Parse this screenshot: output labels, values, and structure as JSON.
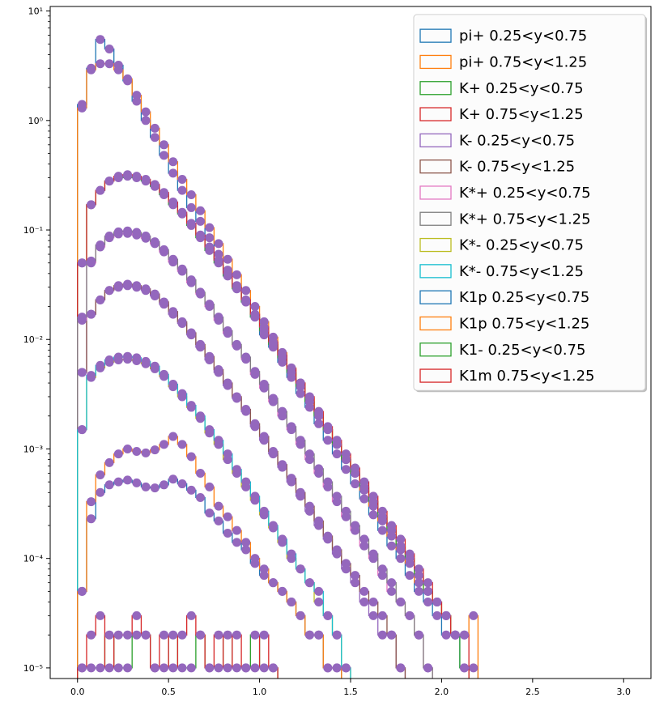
{
  "chart_data": {
    "type": "line",
    "title": "",
    "xlabel": "",
    "ylabel": "",
    "xlim": [
      -0.15,
      3.15
    ],
    "ylim": [
      8e-06,
      11
    ],
    "yscale": "log",
    "grid": false,
    "legend_position": "top-right",
    "bin_width": 0.05,
    "xticks": [
      0.0,
      0.5,
      1.0,
      1.5,
      2.0,
      2.5,
      3.0
    ],
    "xtick_labels": [
      "0.0",
      "0.5",
      "1.0",
      "1.5",
      "2.0",
      "2.5",
      "3.0"
    ],
    "yticks": [
      1e-05,
      0.0001,
      0.001,
      0.01,
      0.1,
      1,
      10
    ],
    "ytick_labels": [
      "10⁻⁵",
      "10⁻⁴",
      "10⁻³",
      "10⁻²",
      "10⁻¹",
      "10⁰",
      "10¹"
    ],
    "marker_color": "#9467bd",
    "series": [
      {
        "name": "pi+ 0.25<y<0.75",
        "color": "#1f77b4",
        "values": [
          1.4,
          3.0,
          5.5,
          4.5,
          3.2,
          2.3,
          1.5,
          1.0,
          0.7,
          0.48,
          0.33,
          0.23,
          0.16,
          0.12,
          0.085,
          0.06,
          0.043,
          0.031,
          0.022,
          0.016,
          0.011,
          0.0085,
          0.0062,
          0.0045,
          0.0032,
          0.0024,
          0.0017,
          0.0012,
          0.0009,
          0.00065,
          0.00048,
          0.00035,
          0.00025,
          0.00018,
          0.00013,
          0.0001,
          7e-05,
          5e-05,
          4e-05,
          3e-05,
          2e-05,
          2e-05,
          1e-05,
          1e-05
        ]
      },
      {
        "name": "pi+ 0.75<y<1.25",
        "color": "#ff7f0e",
        "values": [
          1.3,
          2.9,
          3.3,
          3.3,
          2.9,
          2.4,
          1.7,
          1.2,
          0.85,
          0.6,
          0.42,
          0.29,
          0.21,
          0.15,
          0.105,
          0.075,
          0.054,
          0.039,
          0.028,
          0.02,
          0.0145,
          0.0105,
          0.0076,
          0.0055,
          0.004,
          0.0029,
          0.0021,
          0.0015,
          0.0011,
          0.0008,
          0.0006,
          0.00042,
          0.0003,
          0.00022,
          0.00016,
          0.00012,
          9e-05,
          6e-05,
          5e-05,
          4e-05,
          3e-05,
          2e-05,
          2e-05,
          3e-05
        ]
      },
      {
        "name": "K+ 0.25<y<0.75",
        "color": "#2ca02c",
        "values": [
          0.05,
          0.17,
          0.23,
          0.28,
          0.3,
          0.31,
          0.3,
          0.28,
          0.25,
          0.21,
          0.17,
          0.14,
          0.11,
          0.085,
          0.065,
          0.05,
          0.038,
          0.029,
          0.022,
          0.016,
          0.012,
          0.009,
          0.0068,
          0.005,
          0.0037,
          0.0027,
          0.002,
          0.0015,
          0.0011,
          0.0008,
          0.0006,
          0.00045,
          0.00033,
          0.00024,
          0.00018,
          0.00013,
          0.0001,
          7e-05,
          5e-05,
          4e-05,
          3e-05,
          2e-05,
          1e-05
        ]
      },
      {
        "name": "K+ 0.75<y<1.25",
        "color": "#d62728",
        "values": [
          0.05,
          0.17,
          0.23,
          0.28,
          0.31,
          0.32,
          0.31,
          0.29,
          0.26,
          0.22,
          0.18,
          0.145,
          0.115,
          0.09,
          0.07,
          0.053,
          0.04,
          0.03,
          0.023,
          0.017,
          0.013,
          0.0095,
          0.0072,
          0.0054,
          0.004,
          0.003,
          0.0022,
          0.0016,
          0.0012,
          0.0009,
          0.00067,
          0.0005,
          0.00037,
          0.00027,
          0.0002,
          0.00015,
          0.00011,
          8e-05,
          6e-05,
          4e-05,
          3e-05,
          2e-05,
          2e-05
        ]
      },
      {
        "name": "K- 0.25<y<0.75",
        "color": "#9467bd",
        "values": [
          0.005,
          0.017,
          0.023,
          0.028,
          0.03,
          0.031,
          0.03,
          0.028,
          0.025,
          0.021,
          0.017,
          0.014,
          0.011,
          0.0085,
          0.0065,
          0.005,
          0.0038,
          0.0029,
          0.0022,
          0.0016,
          0.0012,
          0.0009,
          0.00068,
          0.0005,
          0.00037,
          0.00027,
          0.0002,
          0.00015,
          0.00011,
          8e-05,
          6e-05,
          4e-05,
          3e-05,
          2e-05,
          2e-05,
          1e-05
        ]
      },
      {
        "name": "K- 0.75<y<1.25",
        "color": "#8c564b",
        "values": [
          0.005,
          0.017,
          0.023,
          0.028,
          0.031,
          0.032,
          0.031,
          0.029,
          0.026,
          0.022,
          0.018,
          0.0145,
          0.0115,
          0.009,
          0.007,
          0.0053,
          0.004,
          0.003,
          0.0023,
          0.0017,
          0.0013,
          0.00095,
          0.00072,
          0.00054,
          0.0004,
          0.0003,
          0.00022,
          0.00016,
          0.00012,
          9e-05,
          7e-05,
          5e-05,
          4e-05,
          3e-05,
          2e-05,
          1e-05
        ]
      },
      {
        "name": "K*+ 0.25<y<0.75",
        "color": "#e377c2",
        "values": [
          0.015,
          0.05,
          0.07,
          0.085,
          0.092,
          0.093,
          0.09,
          0.084,
          0.075,
          0.063,
          0.051,
          0.042,
          0.033,
          0.026,
          0.02,
          0.015,
          0.0114,
          0.0087,
          0.0066,
          0.0048,
          0.0036,
          0.0027,
          0.002,
          0.0015,
          0.0011,
          0.0008,
          0.0006,
          0.00045,
          0.00033,
          0.00024,
          0.00018,
          0.00013,
          0.0001,
          7e-05,
          5e-05,
          4e-05,
          3e-05,
          2e-05,
          1e-05
        ]
      },
      {
        "name": "K*+ 0.75<y<1.25",
        "color": "#7f7f7f",
        "values": [
          0.016,
          0.052,
          0.073,
          0.088,
          0.096,
          0.098,
          0.095,
          0.088,
          0.078,
          0.066,
          0.054,
          0.044,
          0.035,
          0.027,
          0.021,
          0.016,
          0.012,
          0.009,
          0.0069,
          0.0051,
          0.0039,
          0.0029,
          0.0022,
          0.0016,
          0.0012,
          0.0009,
          0.00066,
          0.0005,
          0.00037,
          0.00027,
          0.0002,
          0.00015,
          0.00011,
          8e-05,
          6e-05,
          4e-05,
          3e-05,
          2e-05,
          1e-05
        ]
      },
      {
        "name": "K*- 0.25<y<0.75",
        "color": "#bcbd22",
        "values": [
          0.0015,
          0.0045,
          0.0055,
          0.0062,
          0.0065,
          0.0066,
          0.0064,
          0.006,
          0.0054,
          0.0046,
          0.0037,
          0.003,
          0.0024,
          0.0019,
          0.0014,
          0.0011,
          0.0008,
          0.0006,
          0.00045,
          0.00034,
          0.00025,
          0.00019,
          0.00014,
          0.0001,
          8e-05,
          6e-05,
          4e-05,
          3e-05,
          2e-05,
          1e-05
        ]
      },
      {
        "name": "K*- 0.75<y<1.25",
        "color": "#17becf",
        "values": [
          0.0015,
          0.0047,
          0.0058,
          0.0065,
          0.0069,
          0.007,
          0.0068,
          0.0063,
          0.0057,
          0.0048,
          0.0039,
          0.0032,
          0.0025,
          0.002,
          0.0015,
          0.0012,
          0.0009,
          0.00065,
          0.0005,
          0.00037,
          0.00027,
          0.0002,
          0.00015,
          0.00011,
          8e-05,
          6e-05,
          5e-05,
          3e-05,
          2e-05,
          1e-05
        ]
      },
      {
        "name": "K1p 0.25<y<0.75",
        "color": "#1f77b4",
        "values": [
          5e-05,
          0.00023,
          0.0004,
          0.00047,
          0.0005,
          0.00052,
          0.00049,
          0.00045,
          0.00044,
          0.00047,
          0.00053,
          0.00048,
          0.00042,
          0.00036,
          0.00026,
          0.00022,
          0.00017,
          0.00014,
          0.00012,
          9e-05,
          7e-05,
          6e-05,
          5e-05,
          4e-05,
          3e-05,
          2e-05,
          2e-05,
          1e-05,
          1e-05
        ]
      },
      {
        "name": "K1p 0.75<y<1.25",
        "color": "#ff7f0e",
        "values": [
          5e-05,
          0.00033,
          0.00058,
          0.00075,
          0.0009,
          0.001,
          0.00095,
          0.00092,
          0.00098,
          0.0011,
          0.0013,
          0.0011,
          0.00085,
          0.0006,
          0.00045,
          0.0003,
          0.00024,
          0.00018,
          0.00014,
          0.0001,
          8e-05,
          6e-05,
          5e-05,
          4e-05,
          3e-05,
          2e-05,
          2e-05,
          1e-05,
          1e-05
        ]
      },
      {
        "name": "K1- 0.25<y<0.75",
        "color": "#2ca02c",
        "values": [
          1e-05,
          1e-05,
          1e-05,
          2e-05,
          1e-05,
          1e-05,
          2e-05,
          2e-05,
          1e-05,
          1e-05,
          2e-05,
          1e-05,
          1e-05,
          2e-05,
          1e-05,
          1e-05,
          2e-05,
          1e-05,
          1e-05,
          2e-05,
          1e-05,
          1e-05
        ]
      },
      {
        "name": "K1m 0.75<y<1.25",
        "color": "#d62728",
        "values": [
          1e-05,
          2e-05,
          3e-05,
          1e-05,
          2e-05,
          2e-05,
          3e-05,
          2e-05,
          1e-05,
          2e-05,
          1e-05,
          2e-05,
          3e-05,
          2e-05,
          1e-05,
          2e-05,
          1e-05,
          2e-05,
          1e-05,
          1e-05,
          2e-05,
          1e-05
        ]
      }
    ]
  }
}
